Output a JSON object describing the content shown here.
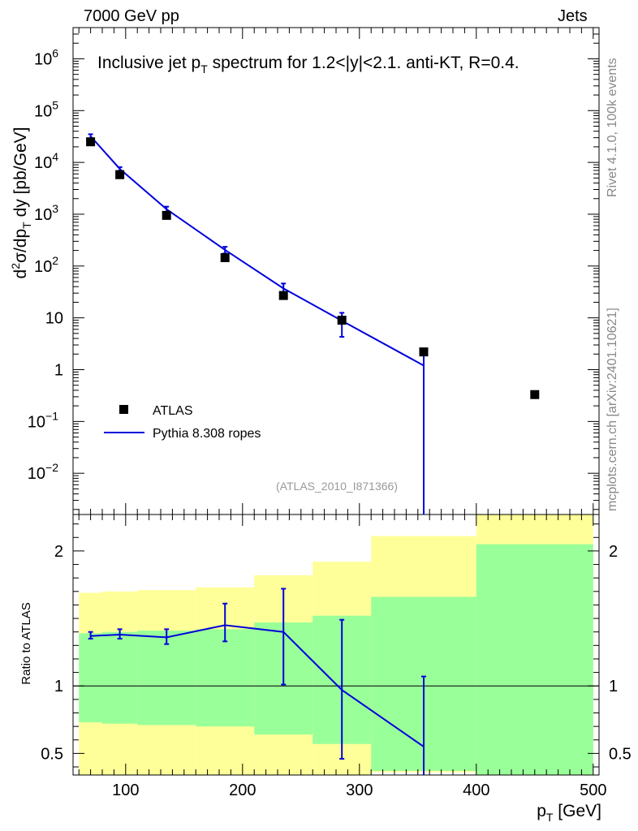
{
  "header": {
    "energy_label": "7000 GeV pp",
    "category_label": "Jets"
  },
  "side_labels": {
    "rivet": "Rivet 4.1.0,  100k events",
    "mcplots": "mcplots.cern.ch [arXiv:2401.10621]"
  },
  "colors": {
    "mc_line": "#0000dd",
    "data_marker": "#000000",
    "band_outer": "#ffff99",
    "band_inner": "#99ff99"
  },
  "chart_data": [
    {
      "type": "scatter",
      "panel": "main",
      "title": "Inclusive jet p_T spectrum for 1.2<|y|<2.1.  anti-KT, R=0.4.",
      "title_parts": {
        "a": "Inclusive jet p",
        "sub": "T",
        "b": " spectrum for 1.2<|y|<2.1.  anti-KT, R=0.4."
      },
      "analysis_id": "(ATLAS_2010_I871366)",
      "ylabel": "d²σ/dp_T dy [pb/GeV]",
      "ylabel_parts": {
        "d": "d",
        "sup": "2",
        "mid": "σ/dp",
        "sub": "T",
        "end": " dy [pb/GeV]"
      },
      "yscale": "log",
      "ylim": [
        0.0016,
        4000000
      ],
      "xlim": [
        55,
        505
      ],
      "y_ticks": [
        {
          "value": 1000000,
          "base": "10",
          "exp": "6"
        },
        {
          "value": 100000,
          "base": "10",
          "exp": "5"
        },
        {
          "value": 10000,
          "base": "10",
          "exp": "4"
        },
        {
          "value": 1000,
          "base": "10",
          "exp": "3"
        },
        {
          "value": 100,
          "base": "10",
          "exp": "2"
        },
        {
          "value": 10,
          "base": "10",
          "exp": ""
        },
        {
          "value": 1,
          "base": "1",
          "exp": ""
        },
        {
          "value": 0.1,
          "base": "10",
          "exp": "−1"
        },
        {
          "value": 0.01,
          "base": "10",
          "exp": "−2"
        }
      ],
      "legend": [
        {
          "label": "ATLAS",
          "style": "marker"
        },
        {
          "label": "Pythia 8.308 ropes",
          "style": "line"
        }
      ],
      "series": [
        {
          "name": "ATLAS",
          "x": [
            70,
            95,
            135,
            185,
            235,
            285,
            355,
            450
          ],
          "y": [
            25000,
            5800,
            950,
            145,
            27,
            9,
            2.2,
            0.33
          ]
        },
        {
          "name": "Pythia 8.308 ropes",
          "x": [
            70,
            95,
            135,
            185,
            235,
            285,
            355
          ],
          "y": [
            32000,
            7500,
            1250,
            205,
            37,
            8.8,
            1.2
          ],
          "err_lo": [
            29000,
            6900,
            1100,
            175,
            28,
            4.3,
            0
          ],
          "err_hi": [
            35000,
            8100,
            1400,
            235,
            46,
            12.5,
            2.3
          ]
        }
      ]
    },
    {
      "type": "line",
      "panel": "ratio",
      "ylabel": "Ratio to ATLAS",
      "xlabel": "p_T [GeV]",
      "xlabel_parts": {
        "a": "p",
        "sub": "T",
        "b": " [GeV]"
      },
      "xlim": [
        55,
        505
      ],
      "ylim": [
        0.34,
        2.27
      ],
      "x_ticks": [
        100,
        200,
        300,
        400,
        500
      ],
      "y_ticks": [
        0.5,
        1,
        2
      ],
      "bands": [
        {
          "x0": 60,
          "x1": 80,
          "outer": [
            0.34,
            1.69
          ],
          "inner": [
            0.73,
            1.39
          ]
        },
        {
          "x0": 80,
          "x1": 110,
          "outer": [
            0.34,
            1.7
          ],
          "inner": [
            0.72,
            1.4
          ]
        },
        {
          "x0": 110,
          "x1": 160,
          "outer": [
            0.34,
            1.71
          ],
          "inner": [
            0.71,
            1.41
          ]
        },
        {
          "x0": 160,
          "x1": 210,
          "outer": [
            0.34,
            1.73
          ],
          "inner": [
            0.7,
            1.42
          ]
        },
        {
          "x0": 210,
          "x1": 260,
          "outer": [
            0.34,
            1.82
          ],
          "inner": [
            0.64,
            1.47
          ]
        },
        {
          "x0": 260,
          "x1": 310,
          "outer": [
            0.34,
            1.92
          ],
          "inner": [
            0.57,
            1.52
          ]
        },
        {
          "x0": 310,
          "x1": 400,
          "outer": [
            0.36,
            2.11
          ],
          "inner": [
            0.37,
            1.66
          ]
        },
        {
          "x0": 400,
          "x1": 500,
          "outer": [
            0.34,
            2.27
          ],
          "inner": [
            0.34,
            2.05
          ]
        }
      ],
      "series": [
        {
          "name": "Pythia 8.308 ropes",
          "x": [
            70,
            95,
            135,
            185,
            235,
            285,
            355
          ],
          "y": [
            1.37,
            1.38,
            1.36,
            1.45,
            1.4,
            0.97,
            0.55
          ],
          "err_lo": [
            1.35,
            1.35,
            1.31,
            1.33,
            1.01,
            0.46,
            0.3
          ],
          "err_hi": [
            1.4,
            1.42,
            1.42,
            1.61,
            1.72,
            1.49,
            1.07
          ]
        }
      ],
      "reference_line": 1
    }
  ]
}
